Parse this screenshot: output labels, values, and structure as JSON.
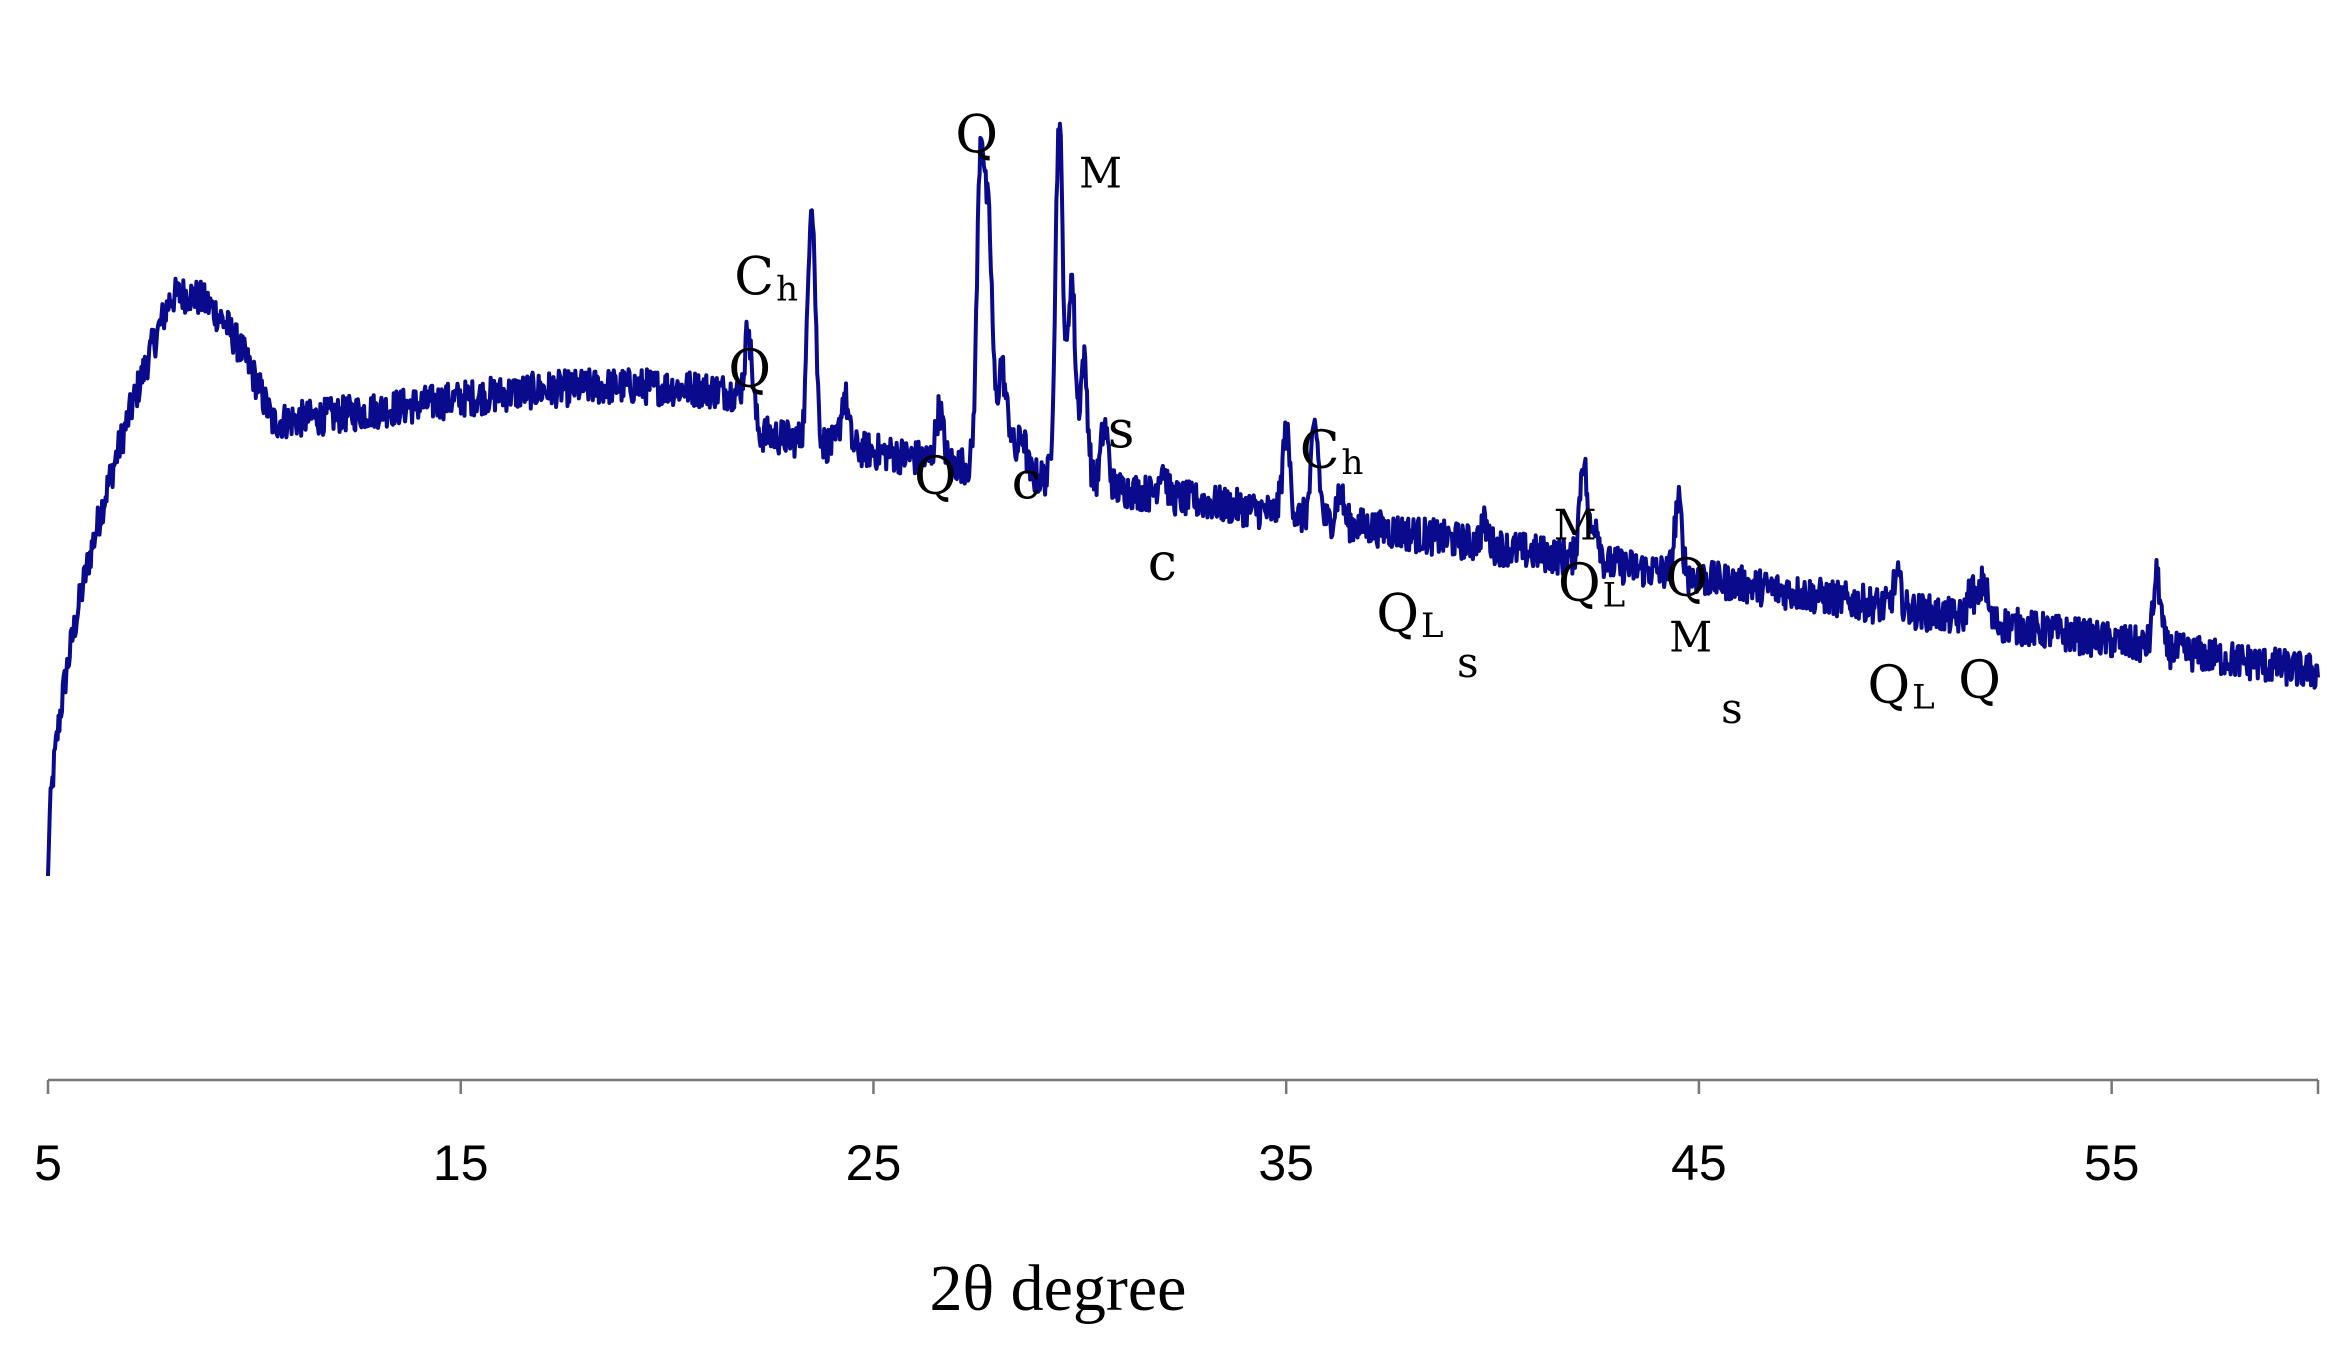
{
  "chart_data": {
    "type": "line",
    "xlabel": "2θ degree",
    "ylabel": "",
    "xlim": [
      5,
      60
    ],
    "ylim": [
      0,
      100
    ],
    "xticks": [
      5,
      15,
      25,
      35,
      45,
      55
    ],
    "grid": false,
    "line_color": "#0a0a8c",
    "series": [
      {
        "peaks": [
          {
            "x": 22.0,
            "height": 8
          },
          {
            "x": 23.5,
            "height": 24
          },
          {
            "x": 24.3,
            "height": 5
          },
          {
            "x": 26.6,
            "height": 5
          },
          {
            "x": 27.6,
            "height": 31
          },
          {
            "x": 27.8,
            "height": 22
          },
          {
            "x": 28.1,
            "height": 10
          },
          {
            "x": 28.3,
            "height": 4
          },
          {
            "x": 28.6,
            "height": 4
          },
          {
            "x": 29.5,
            "height": 35
          },
          {
            "x": 29.8,
            "height": 20
          },
          {
            "x": 30.1,
            "height": 12
          },
          {
            "x": 30.6,
            "height": 6
          },
          {
            "x": 32.0,
            "height": 3
          },
          {
            "x": 35.0,
            "height": 8
          },
          {
            "x": 35.7,
            "height": 9
          },
          {
            "x": 36.3,
            "height": 3
          },
          {
            "x": 39.8,
            "height": 2
          },
          {
            "x": 42.2,
            "height": 10
          },
          {
            "x": 42.5,
            "height": 4
          },
          {
            "x": 44.5,
            "height": 7
          },
          {
            "x": 49.8,
            "height": 3
          },
          {
            "x": 51.6,
            "height": 3
          },
          {
            "x": 51.9,
            "height": 4
          },
          {
            "x": 56.1,
            "height": 7
          }
        ]
      }
    ],
    "annotations": [
      {
        "text": "Q",
        "sub": "",
        "x": 22.0,
        "y": 68,
        "size": "large"
      },
      {
        "text": "C",
        "sub": "h",
        "x": 22.4,
        "y": 77,
        "size": "large"
      },
      {
        "text": "Q",
        "sub": "",
        "x": 26.5,
        "y": 57.5,
        "size": "large"
      },
      {
        "text": "Q",
        "sub": "",
        "x": 27.5,
        "y": 91,
        "size": "large"
      },
      {
        "text": "c",
        "sub": "",
        "x": 28.7,
        "y": 57,
        "size": "large"
      },
      {
        "text": "M",
        "sub": "",
        "x": 30.5,
        "y": 87.5,
        "size": "small"
      },
      {
        "text": "s",
        "sub": "",
        "x": 31.0,
        "y": 62,
        "size": "large"
      },
      {
        "text": "c",
        "sub": "",
        "x": 32.0,
        "y": 49,
        "size": "large"
      },
      {
        "text": "C",
        "sub": "h",
        "x": 36.1,
        "y": 60,
        "size": "large"
      },
      {
        "text": "Q",
        "sub": "L",
        "x": 38.0,
        "y": 44,
        "size": "large"
      },
      {
        "text": "s",
        "sub": "",
        "x": 39.4,
        "y": 39.5,
        "size": "small"
      },
      {
        "text": "M",
        "sub": "",
        "x": 42.0,
        "y": 53,
        "size": "small"
      },
      {
        "text": "Q",
        "sub": "L",
        "x": 42.4,
        "y": 47,
        "size": "large"
      },
      {
        "text": "Q",
        "sub": "",
        "x": 44.7,
        "y": 47.5,
        "size": "large"
      },
      {
        "text": "M",
        "sub": "",
        "x": 44.8,
        "y": 42,
        "size": "small"
      },
      {
        "text": "s",
        "sub": "",
        "x": 45.8,
        "y": 35,
        "size": "small"
      },
      {
        "text": "Q",
        "sub": "L",
        "x": 49.9,
        "y": 37,
        "size": "large"
      },
      {
        "text": "Q",
        "sub": "",
        "x": 51.8,
        "y": 37.5,
        "size": "large"
      }
    ]
  }
}
